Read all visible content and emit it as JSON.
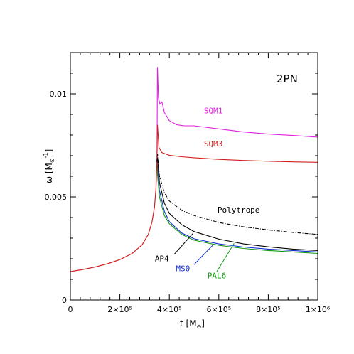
{
  "chart_data": {
    "type": "line",
    "title": "",
    "annotation": "2PN",
    "xlabel": "t [M",
    "xlabel_sub": "⊙",
    "xlabel_end": "]",
    "ylabel": "ω [M",
    "ylabel_sub": "⊙",
    "ylabel_sup": "-1",
    "ylabel_end": "]",
    "xlim": [
      0,
      1000000
    ],
    "ylim": [
      0,
      0.012
    ],
    "x_ticks": [
      {
        "value": 0,
        "label": "0"
      },
      {
        "value": 200000,
        "label": "2×10⁵"
      },
      {
        "value": 400000,
        "label": "4×10⁵"
      },
      {
        "value": 600000,
        "label": "6×10⁵"
      },
      {
        "value": 800000,
        "label": "8×10⁵"
      },
      {
        "value": 1000000,
        "label": "1×10⁶"
      }
    ],
    "y_ticks": [
      {
        "value": 0,
        "label": "0"
      },
      {
        "value": 0.005,
        "label": "0.005"
      },
      {
        "value": 0.01,
        "label": "0.01"
      }
    ],
    "grid": false,
    "colors": {
      "SQM1": "#e020e0",
      "SQM3": "#d02020",
      "Polytrope": "#000000",
      "AP4": "#000000",
      "MS0": "#1030d0",
      "PAL6": "#119911",
      "inspiral": "#d02020"
    },
    "inspiral": [
      [
        0,
        0.00138
      ],
      [
        50000,
        0.00148
      ],
      [
        100000,
        0.0016
      ],
      [
        150000,
        0.00176
      ],
      [
        200000,
        0.00196
      ],
      [
        250000,
        0.00226
      ],
      [
        290000,
        0.00268
      ],
      [
        315000,
        0.00318
      ],
      [
        330000,
        0.00378
      ],
      [
        340000,
        0.0045
      ],
      [
        346000,
        0.0054
      ],
      [
        350000,
        0.0067
      ]
    ],
    "series": [
      {
        "name": "SQM1",
        "style": "solid",
        "label_at": [
          578000,
          0.00905
        ],
        "points": [
          [
            350000,
            0.0067
          ],
          [
            352000,
            0.0113
          ],
          [
            356000,
            0.0098
          ],
          [
            362000,
            0.0095
          ],
          [
            370000,
            0.0096
          ],
          [
            380000,
            0.0091
          ],
          [
            400000,
            0.0087
          ],
          [
            430000,
            0.0085
          ],
          [
            460000,
            0.00845
          ],
          [
            500000,
            0.00845
          ],
          [
            600000,
            0.0083
          ],
          [
            700000,
            0.00815
          ],
          [
            800000,
            0.00805
          ],
          [
            900000,
            0.00798
          ],
          [
            1000000,
            0.0079
          ]
        ]
      },
      {
        "name": "SQM3",
        "style": "solid",
        "label_at": [
          578000,
          0.00745
        ],
        "points": [
          [
            350000,
            0.0067
          ],
          [
            352000,
            0.0085
          ],
          [
            358000,
            0.0074
          ],
          [
            370000,
            0.00715
          ],
          [
            400000,
            0.00702
          ],
          [
            450000,
            0.00695
          ],
          [
            500000,
            0.0069
          ],
          [
            600000,
            0.00682
          ],
          [
            700000,
            0.00677
          ],
          [
            800000,
            0.00673
          ],
          [
            900000,
            0.0067
          ],
          [
            1000000,
            0.00668
          ]
        ]
      },
      {
        "name": "Polytrope",
        "style": "dashdot",
        "label_at": [
          680000,
          0.00425
        ],
        "points": [
          [
            350000,
            0.0067
          ],
          [
            352000,
            0.0071
          ],
          [
            360000,
            0.006
          ],
          [
            380000,
            0.0052
          ],
          [
            400000,
            0.0048
          ],
          [
            450000,
            0.00435
          ],
          [
            500000,
            0.0041
          ],
          [
            600000,
            0.00376
          ],
          [
            700000,
            0.00355
          ],
          [
            800000,
            0.0034
          ],
          [
            900000,
            0.00328
          ],
          [
            1000000,
            0.00318
          ]
        ]
      },
      {
        "name": "AP4",
        "style": "solid",
        "label_at": [
          370000,
          0.00188
        ],
        "points": [
          [
            350000,
            0.0067
          ],
          [
            352000,
            0.0069
          ],
          [
            360000,
            0.0057
          ],
          [
            380000,
            0.0047
          ],
          [
            400000,
            0.0042
          ],
          [
            450000,
            0.00365
          ],
          [
            500000,
            0.00332
          ],
          [
            600000,
            0.00295
          ],
          [
            700000,
            0.00272
          ],
          [
            800000,
            0.00258
          ],
          [
            900000,
            0.00247
          ],
          [
            1000000,
            0.0024
          ]
        ]
      },
      {
        "name": "MS0",
        "style": "solid",
        "label_at": [
          455000,
          0.0014
        ],
        "points": [
          [
            350000,
            0.0067
          ],
          [
            352000,
            0.0065
          ],
          [
            360000,
            0.0053
          ],
          [
            380000,
            0.0043
          ],
          [
            400000,
            0.0038
          ],
          [
            450000,
            0.00325
          ],
          [
            500000,
            0.00297
          ],
          [
            600000,
            0.00272
          ],
          [
            700000,
            0.00257
          ],
          [
            800000,
            0.00247
          ],
          [
            900000,
            0.0024
          ],
          [
            1000000,
            0.00233
          ]
        ]
      },
      {
        "name": "PAL6",
        "style": "solid",
        "label_at": [
          592000,
          0.00106
        ],
        "points": [
          [
            350000,
            0.0067
          ],
          [
            352000,
            0.0061
          ],
          [
            360000,
            0.005
          ],
          [
            380000,
            0.0041
          ],
          [
            400000,
            0.0037
          ],
          [
            450000,
            0.00318
          ],
          [
            500000,
            0.0029
          ],
          [
            600000,
            0.00265
          ],
          [
            700000,
            0.0025
          ],
          [
            800000,
            0.0024
          ],
          [
            900000,
            0.00233
          ],
          [
            1000000,
            0.00226
          ]
        ]
      }
    ],
    "pointers": [
      {
        "name": "AP4",
        "from": [
          495000,
          0.00322
        ],
        "to": [
          420000,
          0.00222
        ]
      },
      {
        "name": "MS0",
        "from": [
          575000,
          0.00265
        ],
        "to": [
          500000,
          0.00172
        ]
      },
      {
        "name": "PAL6",
        "from": [
          662000,
          0.00275
        ],
        "to": [
          592000,
          0.00138
        ]
      }
    ]
  }
}
